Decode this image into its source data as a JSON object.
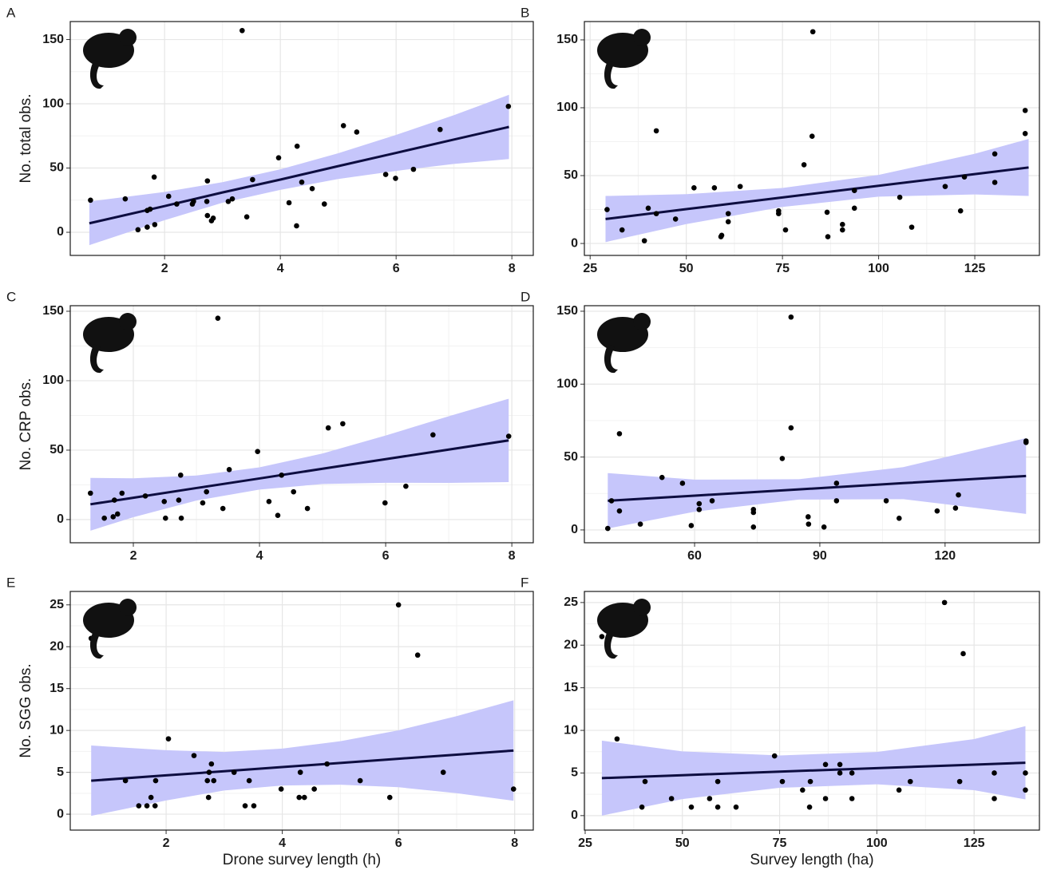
{
  "chart_data": [
    {
      "type": "scatter",
      "panel_label": "A",
      "ylabel": "No. total obs.",
      "xlim": [
        0.37,
        8.37
      ],
      "ylim": [
        -18,
        164
      ],
      "xticks": [
        2,
        4,
        6,
        8
      ],
      "yticks": [
        0,
        50,
        100,
        150
      ],
      "grid": true,
      "point_color": "#000000",
      "line_color": "#0d0d40",
      "band_color": "#c6c6fb",
      "x": [
        0.72,
        1.32,
        1.54,
        1.7,
        1.7,
        1.75,
        1.82,
        1.83,
        2.07,
        2.21,
        2.48,
        2.5,
        2.73,
        2.74,
        2.74,
        2.81,
        2.84,
        3.1,
        3.17,
        3.34,
        3.42,
        3.52,
        3.97,
        4.15,
        4.29,
        4.28,
        4.37,
        4.55,
        4.76,
        5.09,
        5.32,
        5.82,
        5.99,
        6.3,
        6.76,
        7.94
      ],
      "y": [
        25,
        26,
        2,
        4,
        17,
        18,
        43,
        6,
        28,
        22,
        22,
        24,
        24,
        40,
        13,
        9,
        11,
        24,
        26,
        157,
        12,
        41,
        58,
        23,
        67,
        5,
        39,
        34,
        22,
        83,
        78,
        45,
        42,
        49,
        80,
        98
      ],
      "fit": {
        "x": [
          0.7,
          2,
          3,
          4,
          5,
          6,
          7,
          7.95
        ],
        "y": [
          7,
          20.4,
          31,
          41,
          51.5,
          61.8,
          72.2,
          82
        ],
        "lower": [
          -10,
          9.4,
          23,
          33,
          41.5,
          47.8,
          53.2,
          57
        ],
        "upper": [
          24,
          31.4,
          39,
          49,
          61.5,
          75.8,
          91.2,
          107
        ]
      }
    },
    {
      "type": "scatter",
      "panel_label": "B",
      "xlim": [
        23.5,
        141.8
      ],
      "ylim": [
        -8.8,
        163.5
      ],
      "xticks": [
        25,
        50,
        75,
        100,
        125
      ],
      "yticks": [
        0,
        50,
        100,
        150
      ],
      "grid": true,
      "point_color": "#000000",
      "line_color": "#0d0d40",
      "band_color": "#c6c6fb",
      "x": [
        29.4,
        33.3,
        39.1,
        40.1,
        42.2,
        42.2,
        47.2,
        52,
        57.3,
        59,
        59.2,
        60.9,
        60.9,
        64,
        74,
        74,
        75.8,
        80.6,
        82.7,
        82.9,
        86.6,
        86.8,
        90.6,
        90.6,
        93.7,
        93.7,
        105.5,
        108.6,
        117.3,
        121.3,
        122.3,
        130.2,
        130.2,
        138.1,
        138.1
      ],
      "y": [
        25,
        10,
        2,
        26,
        83,
        22,
        18,
        41,
        41,
        5,
        6,
        22,
        16,
        42,
        24,
        22,
        10,
        58,
        79,
        156,
        23,
        5,
        14,
        10,
        39,
        26,
        34,
        12,
        42,
        24,
        49,
        66,
        45,
        98,
        81
      ],
      "fit": {
        "x": [
          29,
          50,
          75,
          100,
          125,
          139
        ],
        "y": [
          18,
          25.3,
          33.9,
          42.5,
          51.1,
          56
        ],
        "lower": [
          1,
          14.3,
          26.9,
          34.5,
          36.1,
          35
        ],
        "upper": [
          35,
          36.3,
          40.9,
          50.5,
          66.1,
          77
        ]
      }
    },
    {
      "type": "scatter",
      "panel_label": "C",
      "ylabel": "No. CRP obs.",
      "xlim": [
        1.0,
        8.34
      ],
      "ylim": [
        -16.7,
        154
      ],
      "xticks": [
        2,
        4,
        6,
        8
      ],
      "yticks": [
        0,
        50,
        100,
        150
      ],
      "grid": true,
      "point_color": "#000000",
      "line_color": "#0d0d40",
      "band_color": "#c6c6fb",
      "x": [
        1.32,
        1.54,
        1.68,
        1.7,
        1.75,
        1.82,
        2.19,
        2.49,
        2.51,
        2.72,
        2.75,
        2.76,
        3.1,
        3.16,
        3.34,
        3.42,
        3.52,
        3.97,
        4.15,
        4.29,
        4.35,
        4.54,
        4.76,
        5.09,
        5.32,
        5.99,
        6.32,
        6.75,
        7.95
      ],
      "y": [
        19,
        1,
        2,
        14,
        4,
        19,
        17,
        13,
        1,
        14,
        32,
        1,
        12,
        20,
        145,
        8,
        36,
        49,
        13,
        3,
        32,
        20,
        8,
        66,
        69,
        12,
        24,
        61,
        60
      ],
      "fit": {
        "x": [
          1.32,
          2,
          3,
          4,
          5,
          6,
          7,
          7.95
        ],
        "y": [
          11,
          15.7,
          22.7,
          29.6,
          36.6,
          43.5,
          50.4,
          57
        ],
        "lower": [
          -8,
          1.7,
          13.7,
          21.6,
          25.6,
          26.5,
          26.4,
          27
        ],
        "upper": [
          30,
          29.7,
          31.7,
          37.6,
          47.6,
          60.5,
          74.4,
          87
        ]
      }
    },
    {
      "type": "scatter",
      "panel_label": "D",
      "xlim": [
        33.6,
        142.6
      ],
      "ylim": [
        -8.8,
        153.8
      ],
      "xticks": [
        60,
        90,
        120
      ],
      "yticks": [
        0,
        50,
        100,
        150
      ],
      "grid": true,
      "point_color": "#000000",
      "line_color": "#0d0d40",
      "band_color": "#c6c6fb",
      "x": [
        39.2,
        40.1,
        42,
        42,
        47,
        52.2,
        57.1,
        59.2,
        61.1,
        61.1,
        64.2,
        74.1,
        74.1,
        74.1,
        81,
        83.1,
        83.1,
        87.2,
        87.3,
        91,
        94,
        94,
        105.9,
        109,
        118.1,
        122.5,
        123.2,
        139.4,
        139.4
      ],
      "y": [
        1,
        20,
        66,
        13,
        4,
        36,
        32,
        3,
        18,
        14,
        20,
        14,
        12,
        2,
        49,
        146,
        70,
        9,
        4,
        2,
        32,
        20,
        20,
        8,
        13,
        15,
        24,
        61,
        60
      ],
      "fit": {
        "x": [
          39.2,
          60,
          85,
          110,
          139.4
        ],
        "y": [
          20,
          23.5,
          27.8,
          32.1,
          37
        ],
        "lower": [
          1,
          12.5,
          20.8,
          21.1,
          11
        ],
        "upper": [
          39,
          34.5,
          34.8,
          43.1,
          63
        ]
      }
    },
    {
      "type": "scatter",
      "panel_label": "E",
      "ylabel": "No. SGG obs.",
      "xlabel": "Drone survey length (h)",
      "xlim": [
        0.35,
        8.32
      ],
      "ylim": [
        -1.9,
        26.6
      ],
      "xticks": [
        2,
        4,
        6,
        8
      ],
      "yticks": [
        0,
        5,
        10,
        15,
        20,
        25
      ],
      "grid": true,
      "point_color": "#000000",
      "line_color": "#0d0d40",
      "band_color": "#c6c6fb",
      "x": [
        0.71,
        1.3,
        1.53,
        1.67,
        1.74,
        1.81,
        1.82,
        2.04,
        2.48,
        2.73,
        2.74,
        2.78,
        2.82,
        2.71,
        3.17,
        3.36,
        3.43,
        3.51,
        3.98,
        4.29,
        4.31,
        4.38,
        4.55,
        4.77,
        5.34,
        5.85,
        6,
        6.33,
        6.77,
        7.98
      ],
      "y": [
        21,
        4,
        1,
        1,
        2,
        1,
        4,
        9,
        7,
        2,
        5,
        6,
        4,
        4,
        5,
        1,
        4,
        1,
        3,
        2,
        5,
        2,
        3,
        6,
        4,
        2,
        25,
        19,
        5,
        3
      ],
      "fit": {
        "x": [
          0.71,
          2,
          3,
          4,
          5,
          6,
          7,
          7.98
        ],
        "y": [
          4,
          4.64,
          5.13,
          5.63,
          6.12,
          6.62,
          7.11,
          7.6
        ],
        "lower": [
          -0.2,
          1.64,
          2.83,
          3.43,
          3.52,
          3.22,
          2.51,
          1.6
        ],
        "upper": [
          8.2,
          7.64,
          7.43,
          7.83,
          8.72,
          10.02,
          11.71,
          13.6
        ]
      }
    },
    {
      "type": "scatter",
      "panel_label": "F",
      "xlabel": "Survey length (ha)",
      "xlim": [
        24.8,
        141.8
      ],
      "ylim": [
        -1.7,
        26.3
      ],
      "xticks": [
        25,
        50,
        75,
        100,
        125
      ],
      "yticks": [
        0,
        5,
        10,
        15,
        20,
        25
      ],
      "grid": true,
      "point_color": "#000000",
      "line_color": "#0d0d40",
      "band_color": "#c6c6fb",
      "x": [
        29.3,
        33.2,
        39.6,
        40.4,
        47.2,
        52.3,
        57,
        59.1,
        59.1,
        63.8,
        73.7,
        75.7,
        80.9,
        82.7,
        82.9,
        86.8,
        86.8,
        90.5,
        90.5,
        93.6,
        93.6,
        105.7,
        108.6,
        117.4,
        121.3,
        122.2,
        130.2,
        130.2,
        138.2,
        138.2
      ],
      "y": [
        21,
        9,
        1,
        4,
        2,
        1,
        2,
        4,
        1,
        1,
        7,
        4,
        3,
        1,
        4,
        6,
        2,
        6,
        5,
        5,
        2,
        3,
        4,
        25,
        4,
        19,
        5,
        2,
        5,
        3
      ],
      "fit": {
        "x": [
          29.3,
          50,
          75,
          100,
          125,
          138.2
        ],
        "y": [
          4.4,
          4.74,
          5.16,
          5.57,
          5.98,
          6.2
        ],
        "lower": [
          0,
          1.94,
          3.26,
          3.67,
          2.98,
          1.9
        ],
        "upper": [
          8.8,
          7.54,
          7.06,
          7.47,
          8.98,
          10.5
        ]
      }
    }
  ]
}
